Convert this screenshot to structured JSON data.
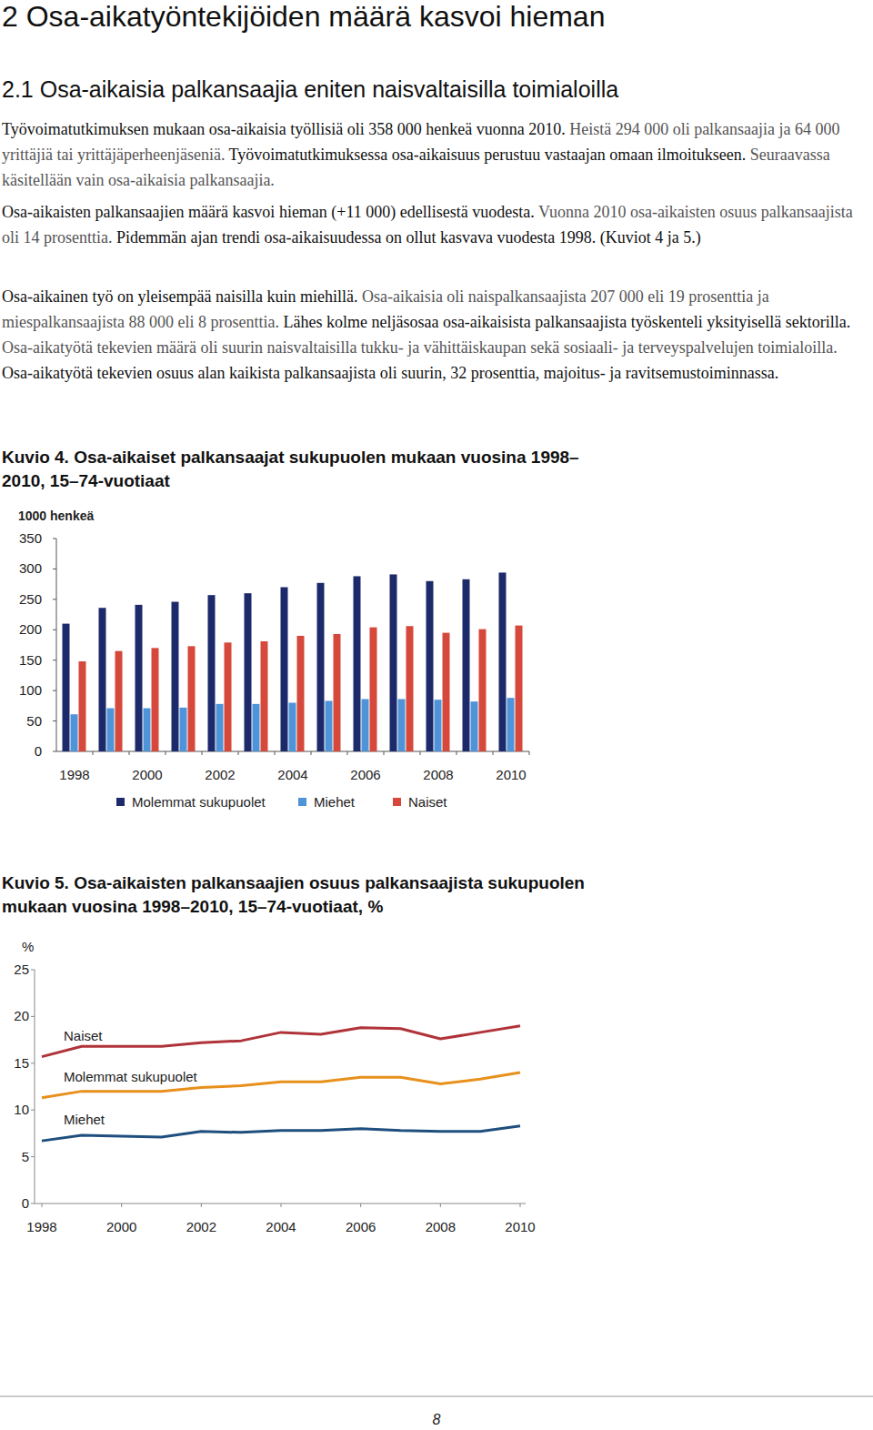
{
  "document": {
    "heading": "2 Osa-aikatyöntekijöiden määrä kasvoi hieman",
    "subheading": "2.1 Osa-aikaisia palkansaajia eniten naisvaltaisilla toimialoilla",
    "paragraphs": [
      [
        "Työvoimatutkimuksen mukaan osa-aikaisia työllisiä oli 358 000 henkeä vuonna 2010.",
        "Heistä 294 000 oli palkansaajia ja 64 000 yrittäjiä tai yrittäjäperheenjäseniä.",
        "Työvoimatutkimuksessa osa-aikaisuus perustuu vastaajan omaan ilmoitukseen.",
        "Seuraavassa käsitellään vain osa-aikaisia palkansaajia."
      ],
      [
        "Osa-aikaisten palkansaajien määrä kasvoi hieman (+11 000) edellisestä vuodesta.",
        "Vuonna 2010 osa-aikaisten osuus palkansaajista oli 14 prosenttia.",
        "Pidemmän ajan trendi osa-aikaisuudessa on ollut kasvava vuodesta 1998. (Kuviot 4 ja 5.)"
      ],
      [
        "Osa-aikainen työ on yleisempää naisilla kuin miehillä.",
        "Osa-aikaisia oli naispalkansaajista 207 000 eli 19 prosenttia ja miespalkansaajista 88 000 eli 8 prosenttia.",
        "Lähes kolme neljäsosaa osa-aikaisista palkansaajista työskenteli yksityisellä sektorilla.",
        "Osa-aikatyötä tekevien määrä oli suurin naisvaltaisilla tukku- ja vähittäiskaupan sekä sosiaali- ja terveyspalvelujen toimialoilla.",
        "Osa-aikatyötä tekevien osuus alan kaikista palkansaajista oli suurin, 32 prosenttia, majoitus- ja ravitsemustoiminnassa."
      ]
    ],
    "page_number": "8"
  },
  "chart_data": [
    {
      "type": "bar",
      "title": "Kuvio 4. Osa-aikaiset palkansaajat sukupuolen mukaan vuosina 1998–2010, 15–74-vuotiaat",
      "y_label": "1000 henkeä",
      "categories": [
        "1998",
        null,
        "2000",
        null,
        "2002",
        null,
        "2004",
        null,
        "2006",
        null,
        "2008",
        null,
        "2010"
      ],
      "series": [
        {
          "name": "Molemmat sukupuolet",
          "color": "#1c2a6b",
          "values": [
            210,
            236,
            241,
            246,
            257,
            260,
            270,
            277,
            288,
            291,
            280,
            283,
            294
          ]
        },
        {
          "name": "Miehet",
          "color": "#4f94d9",
          "values": [
            61,
            71,
            71,
            72,
            78,
            78,
            80,
            83,
            86,
            86,
            85,
            82,
            88
          ]
        },
        {
          "name": "Naiset",
          "color": "#d5483b",
          "values": [
            148,
            165,
            170,
            173,
            179,
            181,
            190,
            193,
            204,
            206,
            195,
            201,
            207
          ]
        }
      ],
      "ylim": [
        0,
        350
      ],
      "yticks": [
        0,
        50,
        100,
        150,
        200,
        250,
        300,
        350
      ],
      "grid": false,
      "legend": "bottom"
    },
    {
      "type": "line",
      "title": "Kuvio 5. Osa-aikaisten palkansaajien osuus palkansaajista sukupuolen mukaan vuosina 1998–2010, 15–74-vuotiaat, %",
      "y_label": "%",
      "x": [
        1998,
        1999,
        2000,
        2001,
        2002,
        2003,
        2004,
        2005,
        2006,
        2007,
        2008,
        2009,
        2010
      ],
      "series": [
        {
          "name": "Naiset",
          "color": "#b0333a",
          "values": [
            15.7,
            16.8,
            16.8,
            16.8,
            17.2,
            17.4,
            18.3,
            18.1,
            18.8,
            18.7,
            17.6,
            18.3,
            19.0
          ]
        },
        {
          "name": "Molemmat sukupuolet",
          "color": "#e8901c",
          "values": [
            11.3,
            12.0,
            12.0,
            12.0,
            12.4,
            12.6,
            13.0,
            13.0,
            13.5,
            13.5,
            12.8,
            13.3,
            14.0
          ]
        },
        {
          "name": "Miehet",
          "color": "#1f4f7e",
          "values": [
            6.7,
            7.3,
            7.2,
            7.1,
            7.7,
            7.6,
            7.8,
            7.8,
            8.0,
            7.8,
            7.7,
            7.7,
            8.3
          ]
        }
      ],
      "xlim": [
        1998,
        2010
      ],
      "xticks": [
        1998,
        2000,
        2002,
        2004,
        2006,
        2008,
        2010
      ],
      "ylim": [
        0,
        25
      ],
      "yticks": [
        0,
        5,
        10,
        15,
        20,
        25
      ],
      "grid": false
    }
  ]
}
